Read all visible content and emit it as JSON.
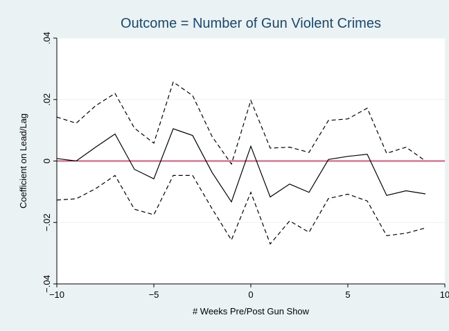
{
  "chart_data": {
    "type": "line",
    "title": "Outcome = Number of Gun Violent Crimes",
    "xlabel": "# Weeks Pre/Post Gun Show",
    "ylabel": "Coefficient on Lead/Lag",
    "xlim": [
      -10,
      10
    ],
    "ylim": [
      -0.04,
      0.04
    ],
    "xticks": [
      -10,
      -5,
      0,
      5,
      10
    ],
    "xtick_labels": [
      "−10",
      "−5",
      "0",
      "5",
      "10"
    ],
    "yticks": [
      -0.04,
      -0.02,
      0,
      0.02,
      0.04
    ],
    "ytick_labels": [
      "−.04",
      "−.02",
      "0",
      ".02",
      ".04"
    ],
    "grid": true,
    "reference_line": {
      "y": 0,
      "color": "#c10534"
    },
    "x": [
      -10,
      -9,
      -8,
      -7,
      -6,
      -5,
      -4,
      -3,
      -2,
      -1,
      0,
      1,
      2,
      3,
      4,
      5,
      6,
      7,
      8,
      9
    ],
    "series": [
      {
        "style": "solid",
        "values": [
          0.0008,
          0.0,
          0.0045,
          0.0088,
          -0.0027,
          -0.0058,
          0.0105,
          0.0083,
          -0.0037,
          -0.0133,
          0.0048,
          -0.0117,
          -0.0075,
          -0.0102,
          0.0005,
          0.0015,
          0.0022,
          -0.0112,
          -0.0097,
          -0.0107
        ]
      },
      {
        "style": "dashed",
        "values": [
          0.0143,
          0.0123,
          0.018,
          0.022,
          0.0107,
          0.0058,
          0.0257,
          0.0213,
          0.008,
          -0.001,
          0.0197,
          0.0042,
          0.0045,
          0.0028,
          0.0132,
          0.0137,
          0.0172,
          0.0025,
          0.0045,
          0.0
        ]
      },
      {
        "style": "dashed",
        "values": [
          -0.0127,
          -0.0123,
          -0.009,
          -0.0047,
          -0.0157,
          -0.0175,
          -0.0047,
          -0.0047,
          -0.0155,
          -0.0257,
          -0.0102,
          -0.027,
          -0.0195,
          -0.0232,
          -0.0122,
          -0.0108,
          -0.013,
          -0.0243,
          -0.0235,
          -0.0218
        ]
      }
    ],
    "colors": {
      "outer_background": "#eaf2f3",
      "plot_background": "#ffffff",
      "title": "#1a476f",
      "lines": "#000000",
      "reference": "#c10534",
      "grid": "#eaf2f3"
    }
  }
}
